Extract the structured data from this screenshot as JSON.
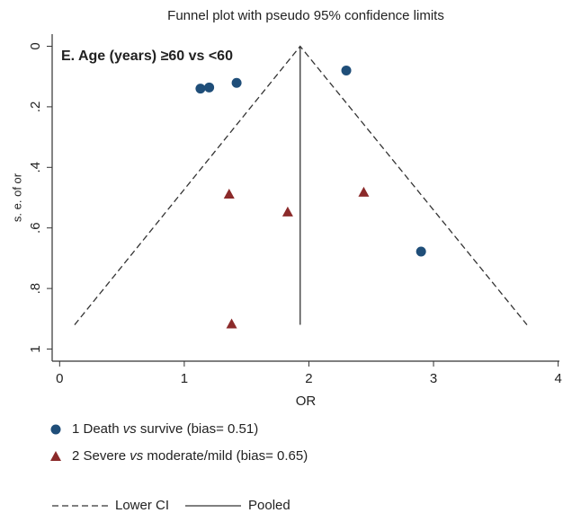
{
  "chart_data": {
    "type": "scatter",
    "title": "Funnel plot with pseudo 95% confidence limits",
    "annotation": "E. Age (years) ≥60 vs <60",
    "xlabel": "OR",
    "ylabel": "s. e. of or",
    "xlim": [
      -0.06,
      4.01
    ],
    "xticks": [
      0,
      1,
      2,
      3,
      4
    ],
    "ylim": [
      -0.04,
      1.04
    ],
    "yreverse": true,
    "yticks": [
      0,
      {
        "value": 0.2,
        "label": ".2"
      },
      {
        "value": 0.4,
        "label": ".4"
      },
      {
        "value": 0.6,
        "label": ".6"
      },
      {
        "value": 0.8,
        "label": ".8"
      },
      1
    ],
    "series": [
      {
        "name": "1 Death vs survive (bias= 0.51)",
        "marker": "circle",
        "color": "#1f4e79",
        "x": [
          1.13,
          1.2,
          1.42,
          2.3,
          2.9
        ],
        "values": [
          0.14,
          0.136,
          0.121,
          0.08,
          0.678
        ]
      },
      {
        "name": "2 Severe vs moderate/mild (bias= 0.65)",
        "marker": "triangle",
        "color": "#8b2a2a",
        "x": [
          1.36,
          1.83,
          2.44,
          1.38
        ],
        "values": [
          0.488,
          0.547,
          0.482,
          0.917
        ]
      }
    ],
    "lines": [
      {
        "name": "Lower CI",
        "dashed": true,
        "x": [
          0.12,
          1.93,
          3.75
        ],
        "values": [
          0.92,
          0,
          0.92
        ]
      },
      {
        "name": "Pooled",
        "dashed": false,
        "x": [
          1.93,
          1.93
        ],
        "values": [
          0,
          0.92
        ]
      }
    ]
  }
}
